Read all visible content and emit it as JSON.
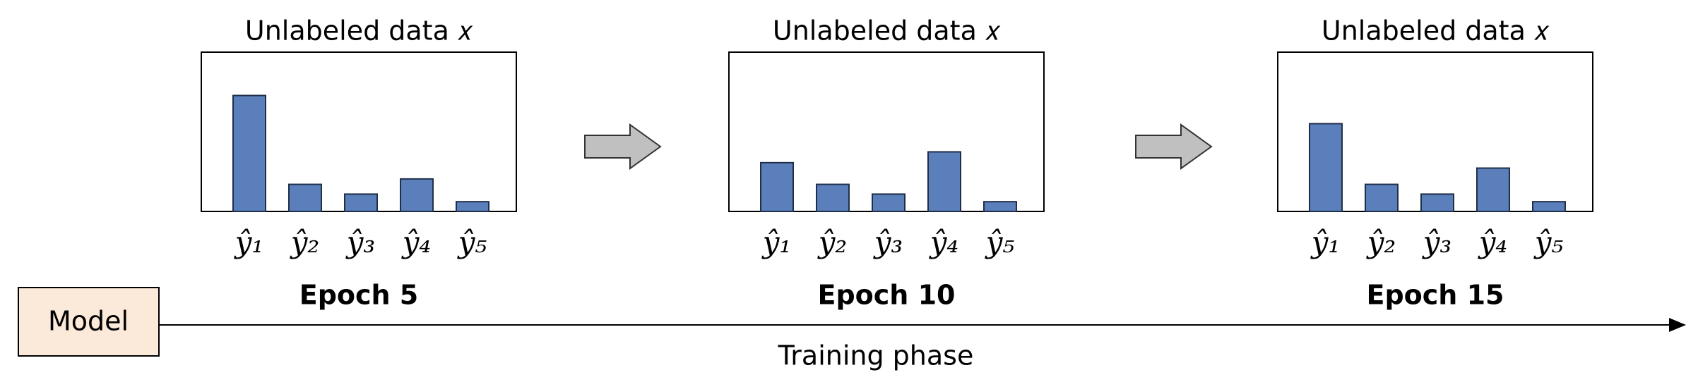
{
  "chart_data": [
    {
      "type": "bar",
      "title": "Unlabeled data 𝑥",
      "xlabel": "Epoch 5",
      "categories": [
        "ŷ₁",
        "ŷ₂",
        "ŷ₃",
        "ŷ₄",
        "ŷ₅"
      ],
      "values": [
        107,
        25,
        16,
        30,
        9
      ],
      "color": "#5b7fba",
      "ylim": [
        0,
        147
      ]
    },
    {
      "type": "bar",
      "title": "Unlabeled data 𝑥",
      "xlabel": "Epoch 10",
      "categories": [
        "ŷ₁",
        "ŷ₂",
        "ŷ₃",
        "ŷ₄",
        "ŷ₅"
      ],
      "values": [
        45,
        25,
        16,
        55,
        9
      ],
      "color": "#5b7fba",
      "ylim": [
        0,
        147
      ]
    },
    {
      "type": "bar",
      "title": "Unlabeled data 𝑥",
      "xlabel": "Epoch 15",
      "categories": [
        "ŷ₁",
        "ŷ₂",
        "ŷ₃",
        "ŷ₄",
        "ŷ₅"
      ],
      "values": [
        81,
        25,
        16,
        40,
        9
      ],
      "color": "#5b7fba",
      "ylim": [
        0,
        147
      ]
    }
  ],
  "diagram": {
    "model": "Model",
    "axis_label": "Training phase"
  }
}
